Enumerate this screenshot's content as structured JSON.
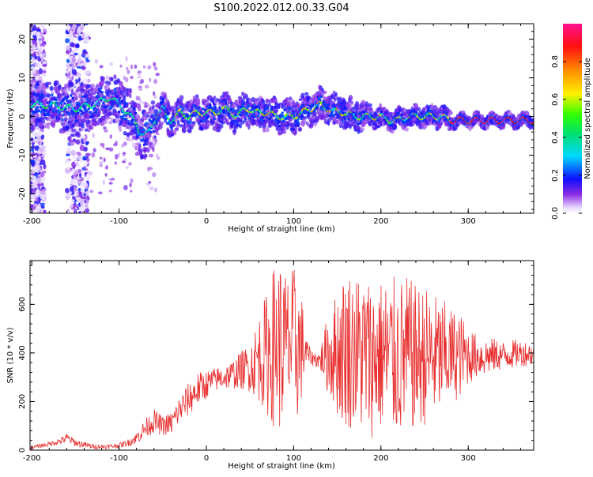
{
  "figure": {
    "title": "S100.2022.012.00.33.G04"
  },
  "chart_data": [
    {
      "type": "heatmap",
      "xlabel": "Height of straight line (km)",
      "ylabel": "Frequency (Hz)",
      "xlim": [
        -202,
        375
      ],
      "ylim": [
        -25,
        24
      ],
      "xticks": [
        -200,
        -100,
        0,
        100,
        200,
        300
      ],
      "yticks": [
        20,
        10,
        0,
        -10,
        -20
      ],
      "colorbar": {
        "label": "Normalized spectral amplitude",
        "range": [
          0,
          1
        ],
        "ticks": [
          0.0,
          0.2,
          0.4,
          0.6,
          0.8
        ]
      },
      "ridge": {
        "x": [
          -200,
          -180,
          -150,
          -130,
          -120,
          -110,
          -100,
          -90,
          -80,
          -75,
          -70,
          -65,
          -60,
          -50,
          -45,
          -40,
          -30,
          -20,
          -10,
          0,
          10,
          20,
          30,
          35,
          40,
          45,
          50,
          55,
          60,
          70,
          80,
          90,
          100,
          110,
          120,
          130,
          140,
          150,
          160,
          170,
          180,
          190,
          200,
          210,
          220,
          230,
          240,
          250,
          260,
          270,
          280,
          290,
          300,
          310,
          320,
          330,
          340,
          350,
          360,
          375
        ],
        "y": [
          3,
          3,
          2,
          3,
          4,
          5,
          3,
          1,
          -2,
          -4,
          -5,
          -4,
          -1,
          2,
          0,
          -1,
          1,
          0,
          1,
          1,
          1,
          2,
          1,
          0,
          1,
          2,
          2,
          1,
          1,
          1,
          0,
          0,
          0,
          1,
          2,
          3,
          2,
          1,
          1,
          0,
          0,
          0,
          0,
          -1,
          -1,
          0,
          0,
          0,
          0,
          0,
          -1,
          -1,
          -1,
          -1,
          -1,
          -1,
          -1,
          -1,
          -1,
          -1
        ]
      },
      "noise_columns": [
        {
          "x_from": -202,
          "x_to": -185
        },
        {
          "x_from": -160,
          "x_to": -135
        }
      ]
    },
    {
      "type": "line",
      "xlabel": "Height of straight line (km)",
      "ylabel": "SNR (10 * v/v)",
      "xlim": [
        -202,
        375
      ],
      "ylim": [
        0,
        780
      ],
      "xticks": [
        -200,
        -100,
        0,
        100,
        200,
        300
      ],
      "yticks": [
        0,
        200,
        400,
        600
      ],
      "series_color": "#e83030",
      "envelope": {
        "x": [
          -202,
          -180,
          -165,
          -160,
          -150,
          -130,
          -110,
          -100,
          -90,
          -80,
          -70,
          -60,
          -50,
          -40,
          -30,
          -20,
          -10,
          0,
          10,
          20,
          30,
          40,
          50,
          60,
          70,
          75,
          80,
          85,
          90,
          95,
          100,
          105,
          110,
          115,
          120,
          130,
          140,
          150,
          160,
          170,
          180,
          190,
          200,
          210,
          220,
          230,
          240,
          250,
          260,
          270,
          280,
          290,
          300,
          310,
          320,
          330,
          340,
          350,
          360,
          375
        ],
        "mean": [
          10,
          25,
          40,
          50,
          30,
          15,
          15,
          20,
          30,
          50,
          90,
          120,
          100,
          110,
          170,
          210,
          250,
          270,
          290,
          300,
          310,
          330,
          340,
          380,
          400,
          420,
          440,
          430,
          420,
          430,
          440,
          420,
          420,
          400,
          380,
          370,
          400,
          400,
          420,
          410,
          390,
          380,
          390,
          380,
          380,
          390,
          380,
          390,
          380,
          385,
          390,
          390,
          390,
          385,
          385,
          390,
          390,
          395,
          400,
          395
        ],
        "amp": [
          5,
          10,
          15,
          20,
          15,
          10,
          10,
          10,
          15,
          25,
          40,
          50,
          40,
          50,
          60,
          70,
          70,
          60,
          50,
          50,
          60,
          80,
          100,
          180,
          260,
          320,
          350,
          360,
          330,
          300,
          320,
          300,
          200,
          60,
          30,
          40,
          180,
          260,
          340,
          320,
          340,
          330,
          320,
          340,
          330,
          330,
          300,
          290,
          270,
          240,
          200,
          180,
          120,
          90,
          80,
          70,
          60,
          60,
          55,
          50
        ]
      }
    }
  ]
}
